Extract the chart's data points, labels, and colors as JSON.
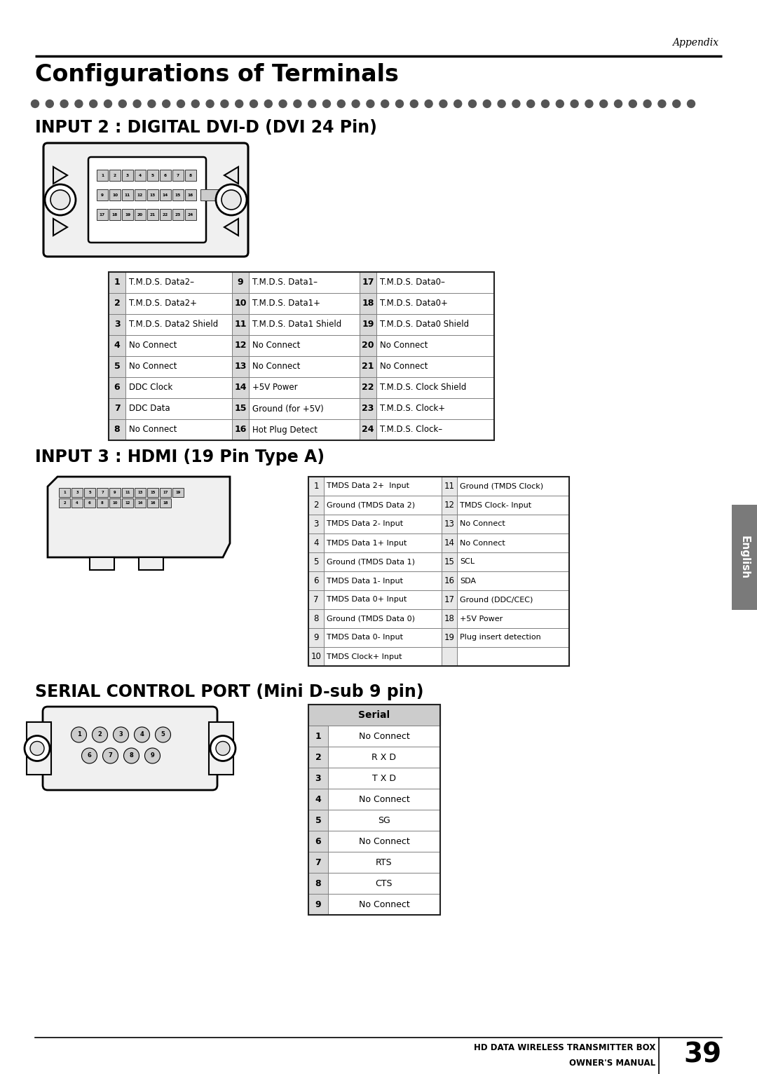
{
  "page_bg": "#ffffff",
  "appendix_text": "Appendix",
  "title": "Configurations of Terminals",
  "section1_title": "INPUT 2 : DIGITAL DVI-D (DVI 24 Pin)",
  "section2_title": "INPUT 3 : HDMI (19 Pin Type A)",
  "section3_title": "SERIAL CONTROL PORT (Mini D-sub 9 pin)",
  "footer_line1": "HD DATA WIRELESS TRANSMITTER BOX",
  "footer_line2": "OWNER'S MANUAL",
  "footer_num": "39",
  "english_tab": "English",
  "dvi_table": {
    "rows": [
      [
        "1",
        "T.M.D.S. Data2–",
        "9",
        "T.M.D.S. Data1–",
        "17",
        "T.M.D.S. Data0–"
      ],
      [
        "2",
        "T.M.D.S. Data2+",
        "10",
        "T.M.D.S. Data1+",
        "18",
        "T.M.D.S. Data0+"
      ],
      [
        "3",
        "T.M.D.S. Data2 Shield",
        "11",
        "T.M.D.S. Data1 Shield",
        "19",
        "T.M.D.S. Data0 Shield"
      ],
      [
        "4",
        "No Connect",
        "12",
        "No Connect",
        "20",
        "No Connect"
      ],
      [
        "5",
        "No Connect",
        "13",
        "No Connect",
        "21",
        "No Connect"
      ],
      [
        "6",
        "DDC Clock",
        "14",
        "+5V Power",
        "22",
        "T.M.D.S. Clock Shield"
      ],
      [
        "7",
        "DDC Data",
        "15",
        "Ground (for +5V)",
        "23",
        "T.M.D.S. Clock+"
      ],
      [
        "8",
        "No Connect",
        "16",
        "Hot Plug Detect",
        "24",
        "T.M.D.S. Clock–"
      ]
    ]
  },
  "hdmi_col1": [
    [
      "1",
      "TMDS Data 2+  Input"
    ],
    [
      "2",
      "Ground (TMDS Data 2)"
    ],
    [
      "3",
      "TMDS Data 2- Input"
    ],
    [
      "4",
      "TMDS Data 1+ Input"
    ],
    [
      "5",
      "Ground (TMDS Data 1)"
    ],
    [
      "6",
      "TMDS Data 1- Input"
    ],
    [
      "7",
      "TMDS Data 0+ Input"
    ],
    [
      "8",
      "Ground (TMDS Data 0)"
    ],
    [
      "9",
      "TMDS Data 0- Input"
    ],
    [
      "10",
      "TMDS Clock+ Input"
    ]
  ],
  "hdmi_col2": [
    [
      "11",
      "Ground (TMDS Clock)"
    ],
    [
      "12",
      "TMDS Clock- Input"
    ],
    [
      "13",
      "No Connect"
    ],
    [
      "14",
      "No Connect"
    ],
    [
      "15",
      "SCL"
    ],
    [
      "16",
      "SDA"
    ],
    [
      "17",
      "Ground (DDC/CEC)"
    ],
    [
      "18",
      "+5V Power"
    ],
    [
      "19",
      "Plug insert detection"
    ]
  ],
  "serial_rows": [
    [
      "1",
      "No Connect"
    ],
    [
      "2",
      "R X D"
    ],
    [
      "3",
      "T X D"
    ],
    [
      "4",
      "No Connect"
    ],
    [
      "5",
      "SG"
    ],
    [
      "6",
      "No Connect"
    ],
    [
      "7",
      "RTS"
    ],
    [
      "8",
      "CTS"
    ],
    [
      "9",
      "No Connect"
    ]
  ]
}
